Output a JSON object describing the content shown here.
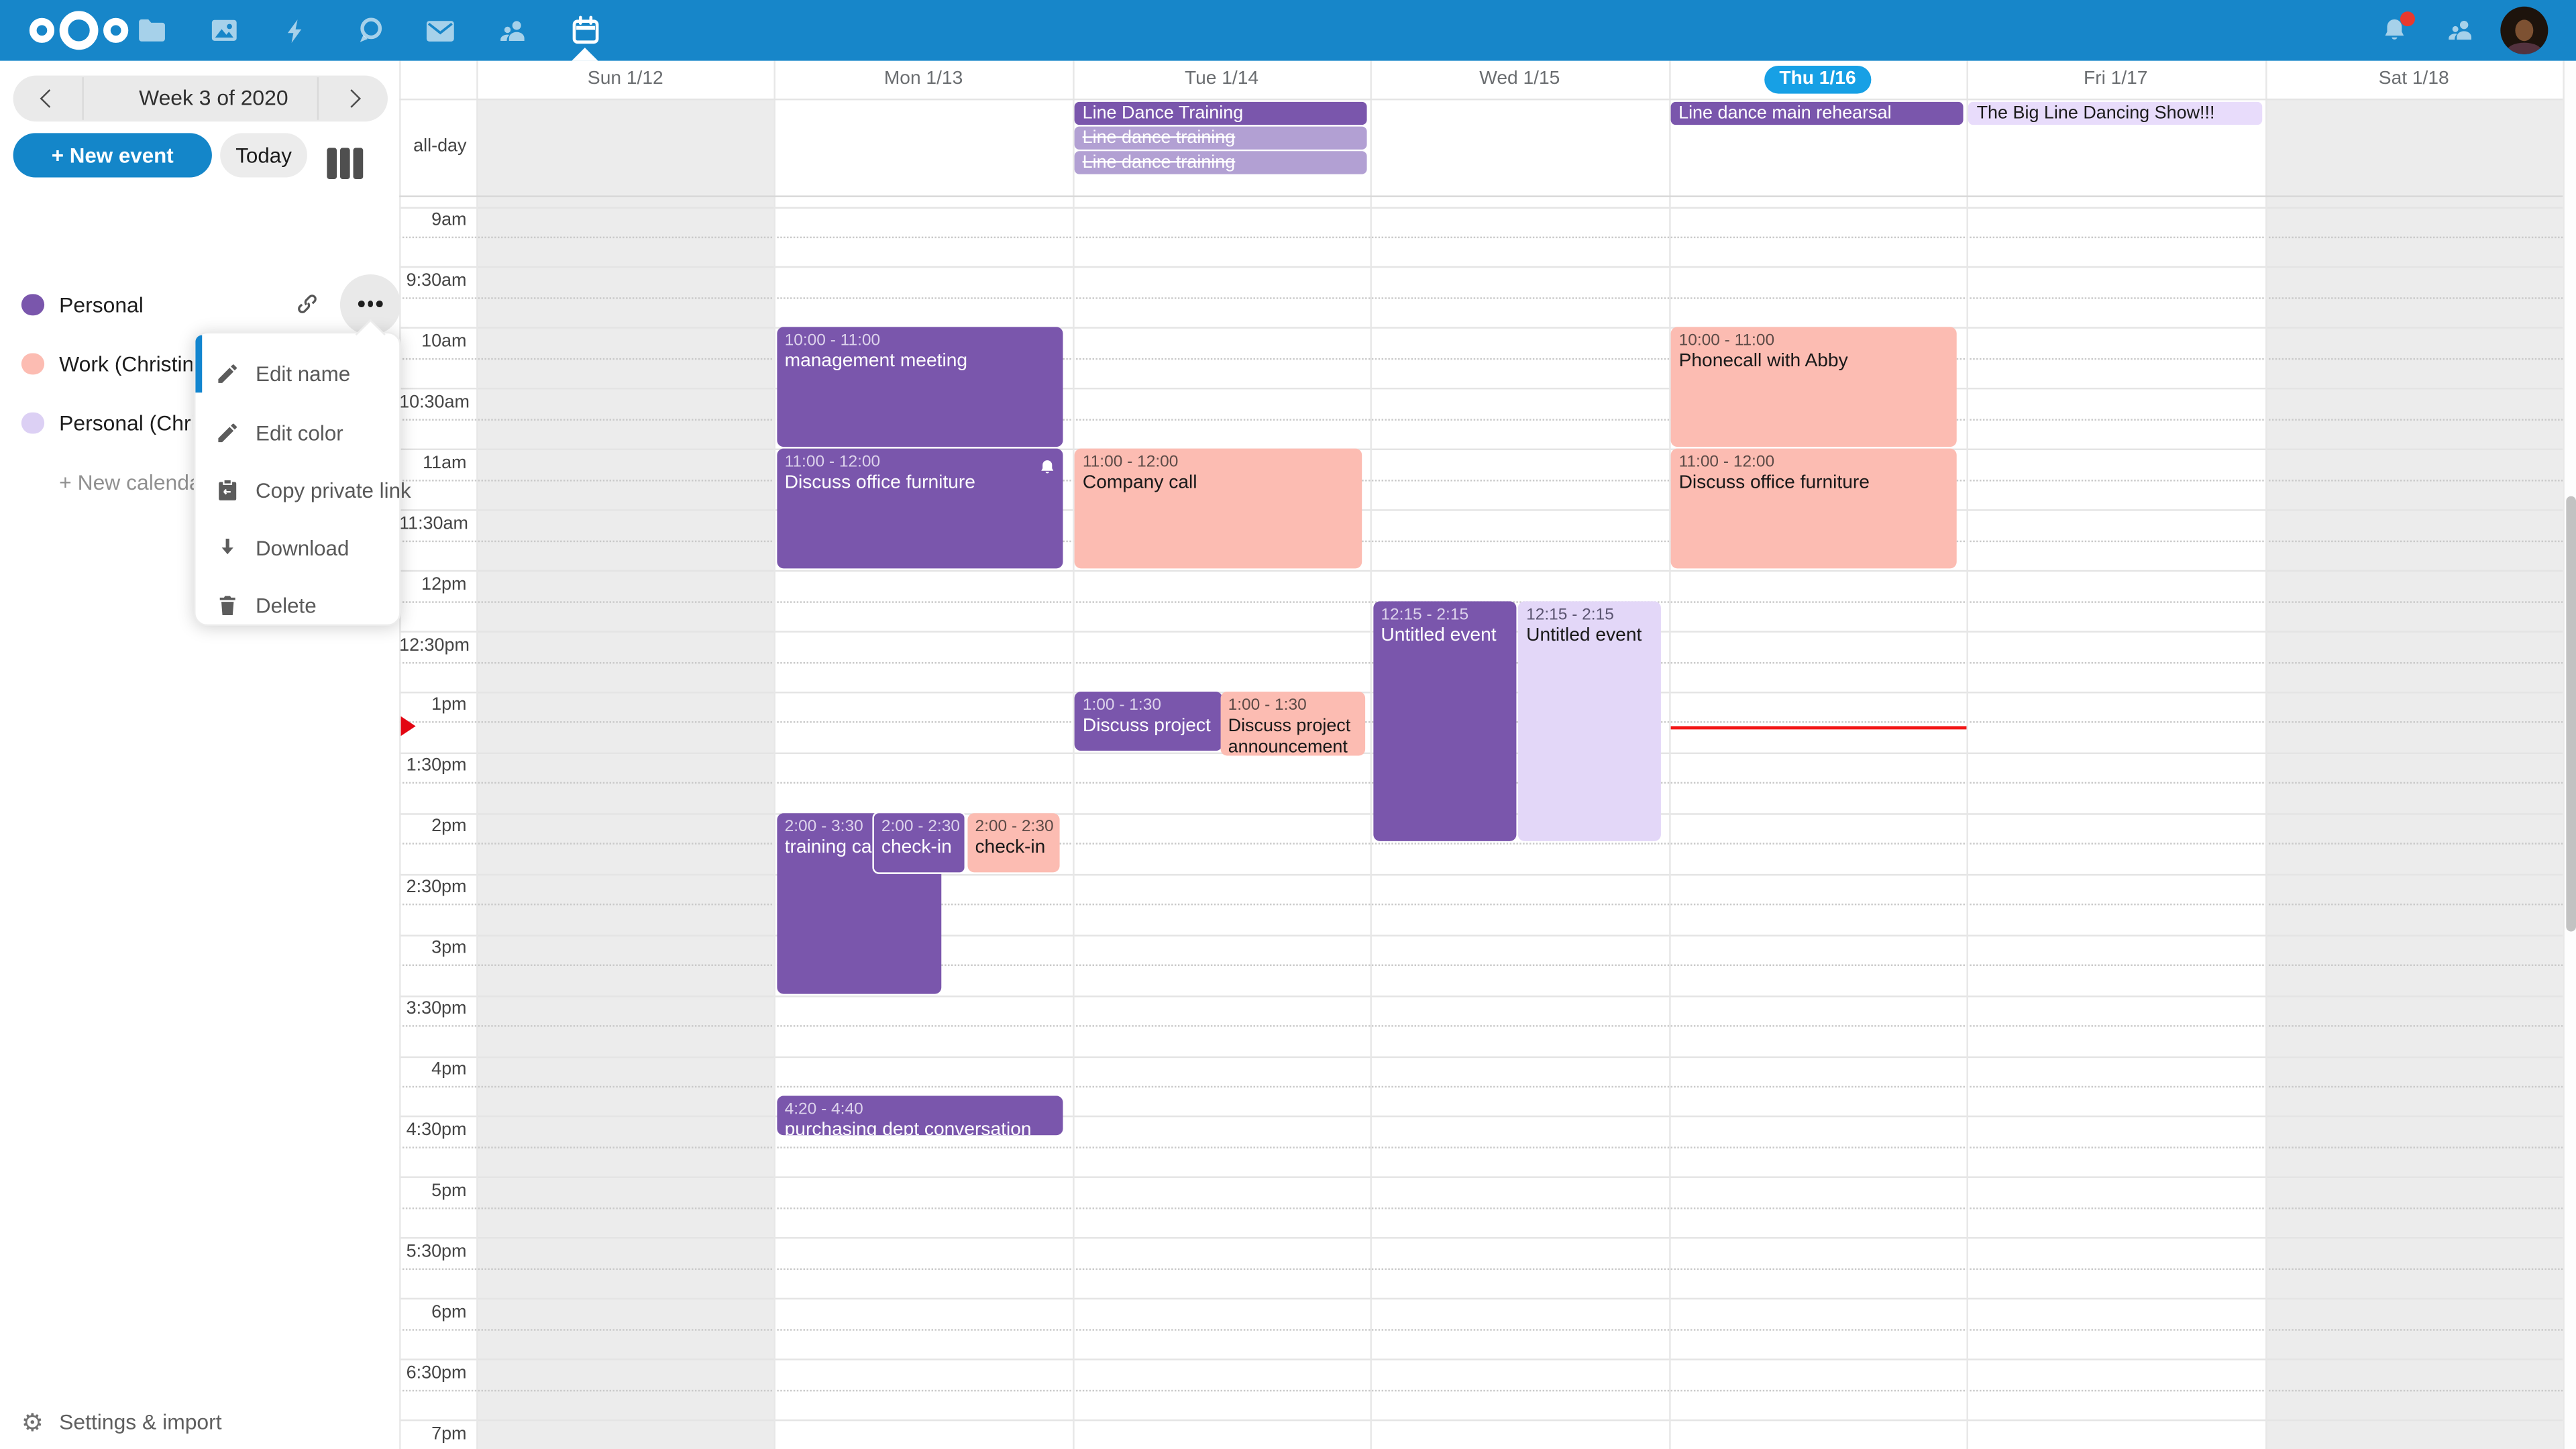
{
  "topbar": {
    "apps": [
      {
        "name": "files"
      },
      {
        "name": "photos"
      },
      {
        "name": "activity"
      },
      {
        "name": "talk"
      },
      {
        "name": "mail"
      },
      {
        "name": "contacts"
      },
      {
        "name": "calendar",
        "active": true
      }
    ],
    "has_notification_badge": true
  },
  "sidebar": {
    "week_label": "Week 3 of 2020",
    "new_event_label": "+ New event",
    "today_label": "Today",
    "calendars": [
      {
        "name": "Personal",
        "color": "#7a56ac"
      },
      {
        "name": "Work (Christine S",
        "color": "#fcbcb2"
      },
      {
        "name": "Personal (Christi",
        "color": "#dcd0f4"
      }
    ],
    "new_calendar_label": "+ New calendar",
    "menu_items": [
      {
        "label": "Edit name",
        "icon": "pencil-icon"
      },
      {
        "label": "Edit color",
        "icon": "pencil-icon"
      },
      {
        "label": "Copy private link",
        "icon": "clipboard-icon"
      },
      {
        "label": "Download",
        "icon": "download-icon"
      },
      {
        "label": "Delete",
        "icon": "trash-icon"
      }
    ],
    "settings_label": "Settings & import"
  },
  "calendar": {
    "allday_label": "all-day",
    "days": [
      {
        "label": "Sun 1/12",
        "shaded": true
      },
      {
        "label": "Mon 1/13"
      },
      {
        "label": "Tue 1/14"
      },
      {
        "label": "Wed 1/15"
      },
      {
        "label": "Thu 1/16",
        "today": true
      },
      {
        "label": "Fri 1/17"
      },
      {
        "label": "Sat 1/18",
        "shaded": true
      }
    ],
    "times": [
      "9am",
      "9:30am",
      "10am",
      "10:30am",
      "11am",
      "11:30am",
      "12pm",
      "12:30pm",
      "1pm",
      "1:30pm",
      "2pm",
      "2:30pm",
      "3pm",
      "3:30pm",
      "4pm",
      "4:30pm",
      "5pm",
      "5:30pm",
      "6pm",
      "6:30pm",
      "7pm"
    ],
    "allday_events": [
      {
        "day": "Tue 1/14",
        "title": "Line Dance Training",
        "style": "purple",
        "strikethrough": false
      },
      {
        "day": "Tue 1/14",
        "title": "Line dance training",
        "style": "purple-muted",
        "strikethrough": true
      },
      {
        "day": "Tue 1/14",
        "title": "Line dance training",
        "style": "purple-muted",
        "strikethrough": true
      },
      {
        "day": "Thu 1/16",
        "title": "Line dance main rehearsal",
        "style": "purple",
        "strikethrough": false
      },
      {
        "day": "Fri 1/17",
        "title": "The Big Line Dancing Show!!!",
        "style": "lavender-light",
        "strikethrough": false
      }
    ],
    "events": [
      {
        "day": "Mon 1/13",
        "time": "10:00 - 11:00",
        "title": "management meeting",
        "style": "purple"
      },
      {
        "day": "Mon 1/13",
        "time": "11:00 - 12:00",
        "title": "Discuss office furniture",
        "style": "purple",
        "reminder": true
      },
      {
        "day": "Tue 1/14",
        "time": "11:00 - 12:00",
        "title": "Company call",
        "style": "pink"
      },
      {
        "day": "Tue 1/14",
        "time": "1:00 - 1:30",
        "title": "Discuss project announcement",
        "style": "purple"
      },
      {
        "day": "Tue 1/14",
        "time": "1:00 - 1:30",
        "title": "Discuss project announcement",
        "style": "pink"
      },
      {
        "day": "Wed 1/15",
        "time": "12:15 - 2:15",
        "title": "Untitled event",
        "style": "purple"
      },
      {
        "day": "Wed 1/15",
        "time": "12:15 - 2:15",
        "title": "Untitled event",
        "style": "lavender"
      },
      {
        "day": "Thu 1/16",
        "time": "10:00 - 11:00",
        "title": "Phonecall with Abby",
        "style": "pink"
      },
      {
        "day": "Thu 1/16",
        "time": "11:00 - 12:00",
        "title": "Discuss office furniture",
        "style": "pink"
      },
      {
        "day": "Mon 1/13",
        "time": "2:00 - 3:30",
        "title": "training call",
        "style": "purple"
      },
      {
        "day": "Mon 1/13",
        "time": "2:00 - 2:30",
        "title": "check-in",
        "style": "purple"
      },
      {
        "day": "Mon 1/13",
        "time": "2:00 - 2:30",
        "title": "check-in",
        "style": "pink"
      },
      {
        "day": "Mon 1/13",
        "time": "4:20 - 4:40",
        "title": "purchasing dept conversation",
        "style": "purple"
      }
    ],
    "current_time_day": "Thu 1/16"
  },
  "colors": {
    "topbar": "#1786c9",
    "accent_blue": "#1486c9",
    "today_highlight": "#17a0e5",
    "event_purple": "#7a56ac",
    "event_purple_muted": "#b2a0d3",
    "event_lavender": "#e3d7f8",
    "event_pink": "#fcbcb2",
    "current_time_red": "#f21616"
  }
}
